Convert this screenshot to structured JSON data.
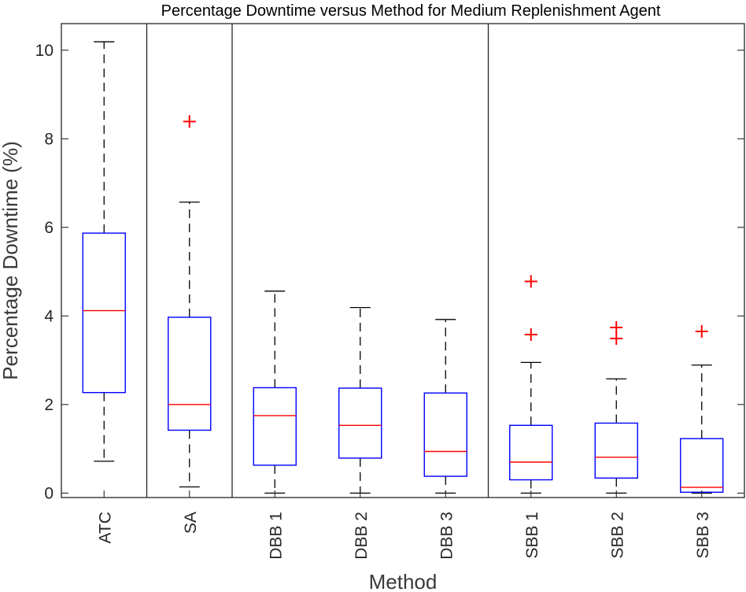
{
  "chart_data": {
    "type": "boxplot",
    "title": "Percentage Downtime versus Method for Medium Replenishment Agent",
    "xlabel": "Method",
    "ylabel": "Percentage Downtime (%)",
    "ylim": [
      -0.1,
      10.6
    ],
    "yticks": [
      0,
      2,
      4,
      6,
      8,
      10
    ],
    "group_separators_after": [
      "ATC",
      "SA",
      "DBB 3"
    ],
    "colors": {
      "box": "#0000ff",
      "median": "#ff0000",
      "whisker": "#000000",
      "outlier": "#ff0000"
    },
    "series": [
      {
        "name": "ATC",
        "whisker_low": 0.72,
        "q1": 2.27,
        "median": 4.12,
        "q3": 5.87,
        "whisker_high": 10.19,
        "outliers": []
      },
      {
        "name": "SA",
        "whisker_low": 0.14,
        "q1": 1.42,
        "median": 2.0,
        "q3": 3.97,
        "whisker_high": 6.57,
        "outliers": [
          8.39
        ]
      },
      {
        "name": "DBB 1",
        "whisker_low": 0.0,
        "q1": 0.63,
        "median": 1.75,
        "q3": 2.38,
        "whisker_high": 4.56,
        "outliers": []
      },
      {
        "name": "DBB 2",
        "whisker_low": 0.0,
        "q1": 0.79,
        "median": 1.53,
        "q3": 2.37,
        "whisker_high": 4.19,
        "outliers": []
      },
      {
        "name": "DBB 3",
        "whisker_low": 0.0,
        "q1": 0.38,
        "median": 0.94,
        "q3": 2.26,
        "whisker_high": 3.92,
        "outliers": []
      },
      {
        "name": "SBB 1",
        "whisker_low": 0.0,
        "q1": 0.3,
        "median": 0.7,
        "q3": 1.53,
        "whisker_high": 2.95,
        "outliers": [
          3.58,
          4.78
        ]
      },
      {
        "name": "SBB 2",
        "whisker_low": 0.0,
        "q1": 0.34,
        "median": 0.81,
        "q3": 1.58,
        "whisker_high": 2.58,
        "outliers": [
          3.49,
          3.74
        ]
      },
      {
        "name": "SBB 3",
        "whisker_low": 0.0,
        "q1": 0.02,
        "median": 0.13,
        "q3": 1.23,
        "whisker_high": 2.89,
        "outliers": [
          3.65
        ]
      }
    ]
  }
}
